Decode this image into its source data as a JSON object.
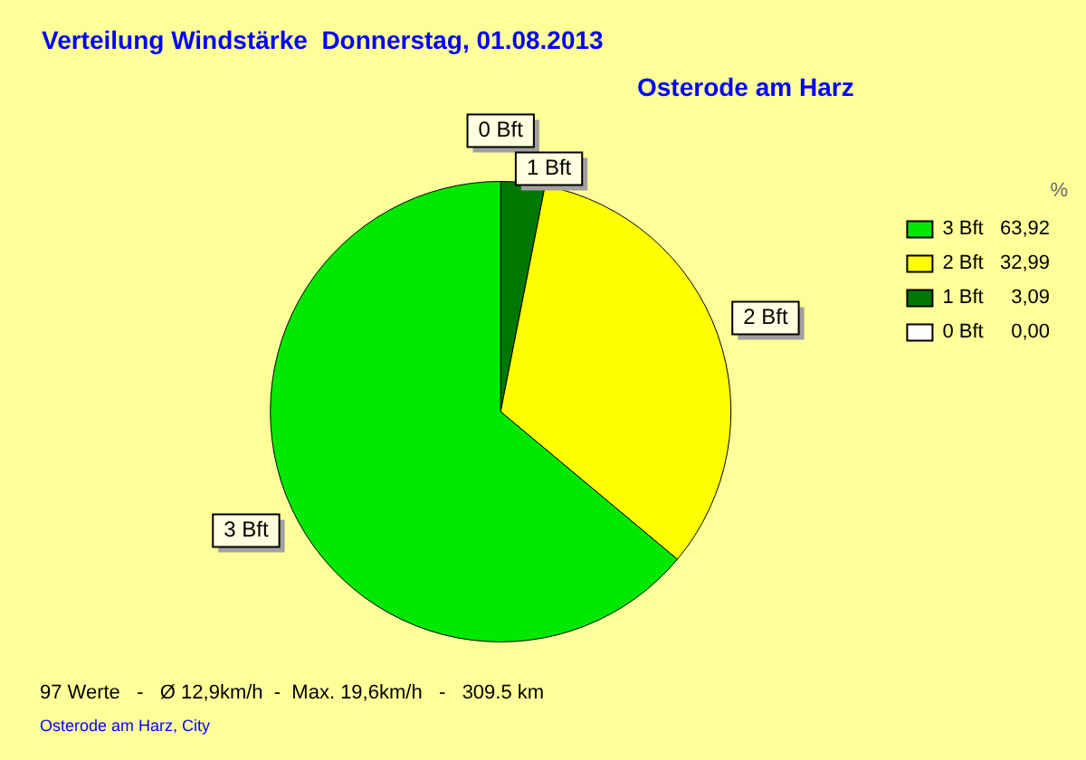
{
  "chart_data": {
    "type": "pie",
    "title": "Verteilung Windstärke  Donnerstag, 01.08.2013",
    "subtitle": "Osterode am Harz",
    "legend_title": "%",
    "categories": [
      "0 Bft",
      "1 Bft",
      "2 Bft",
      "3 Bft"
    ],
    "values": [
      0.0,
      3.09,
      32.99,
      63.92
    ],
    "value_labels": [
      "0,00",
      "3,09",
      "32,99",
      "63,92"
    ],
    "colors": [
      "#ffffff",
      "#007700",
      "#ffff00",
      "#00e800"
    ],
    "legend": "top right",
    "annotations": [
      "97 Werte   -   Ø 12,9km/h  -  Max. 19,6km/h   -   309.5 km",
      "Osterode am Harz, City"
    ]
  }
}
